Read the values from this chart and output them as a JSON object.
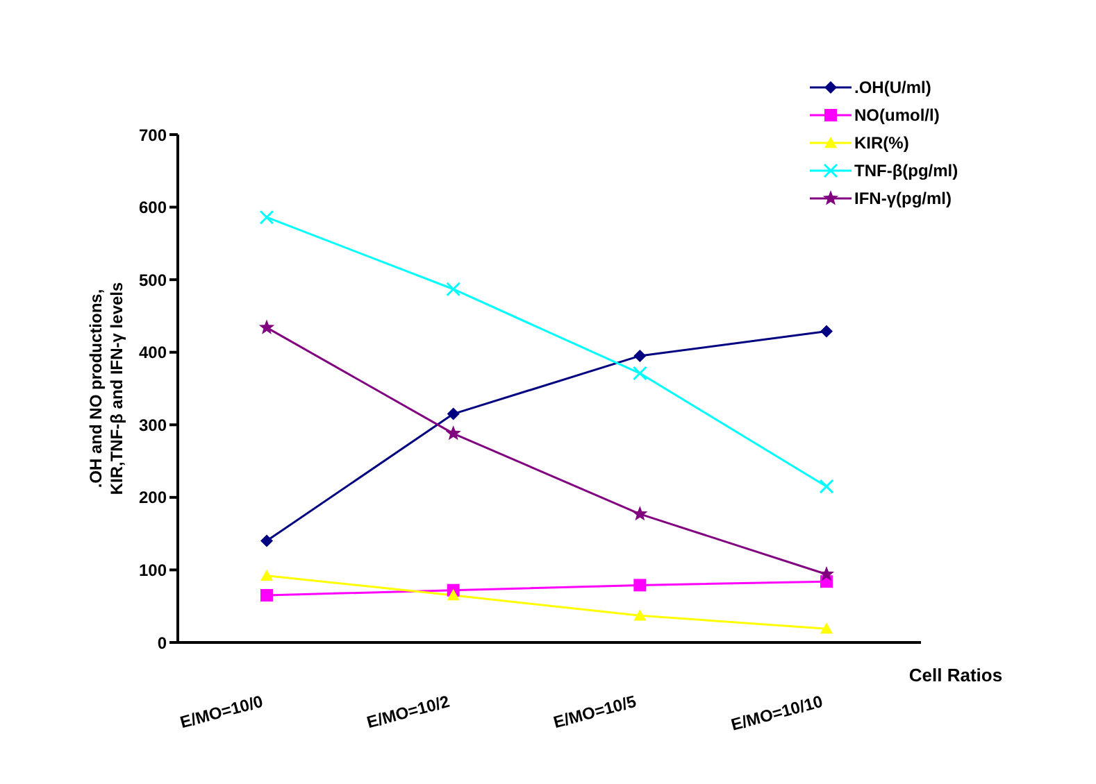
{
  "chart_data": {
    "type": "line",
    "xlabel": "Cell Ratios",
    "ylabel": ".OH and NO productions,\nKIR,TNF-β and IFN-γ levels",
    "categories": [
      "E/MO=10/0",
      "E/MO=10/2",
      "E/MO=10/5",
      "E/MO=10/10"
    ],
    "series": [
      {
        "name": ".OH(U/ml)",
        "color": "#000080",
        "marker": "diamond",
        "values": [
          140,
          315,
          395,
          429
        ]
      },
      {
        "name": "NO(umol/l)",
        "color": "#ff00ff",
        "marker": "square",
        "values": [
          65,
          72,
          79,
          84
        ]
      },
      {
        "name": "KIR(%)",
        "color": "#ffff00",
        "marker": "triangle",
        "values": [
          92,
          65,
          37,
          19
        ]
      },
      {
        "name": "TNF-β(pg/ml)",
        "color": "#00ffff",
        "marker": "cross",
        "values": [
          586,
          487,
          371,
          215
        ]
      },
      {
        "name": "IFN-γ(pg/ml)",
        "color": "#800080",
        "marker": "star",
        "values": [
          434,
          288,
          177,
          94
        ]
      }
    ],
    "ylim": [
      0,
      700
    ],
    "yticks": [
      0,
      100,
      200,
      300,
      400,
      500,
      600,
      700
    ],
    "grid": false,
    "legend": "top right",
    "line_style": "solid"
  }
}
